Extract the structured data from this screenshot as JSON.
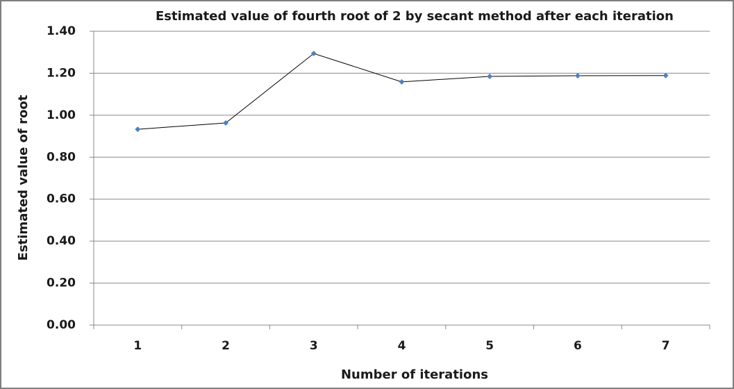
{
  "chart_data": {
    "type": "line",
    "title": "Estimated value of fourth root of 2 by secant method after each iteration",
    "x_label": "Number of iterations",
    "y_label": "Estimated value of root",
    "categories": [
      "1",
      "2",
      "3",
      "4",
      "5",
      "6",
      "7"
    ],
    "values": [
      0.933,
      0.963,
      1.294,
      1.159,
      1.185,
      1.188,
      1.189
    ],
    "color": "#4f81bd",
    "line_color": "#000000",
    "ylim": [
      0,
      1.4
    ],
    "yticks": [
      {
        "value": 0,
        "label": "0.00"
      },
      {
        "value": 0.2,
        "label": "0.20"
      },
      {
        "value": 0.4,
        "label": "0.40"
      },
      {
        "value": 0.6,
        "label": "0.60"
      },
      {
        "value": 0.8,
        "label": "0.80"
      },
      {
        "value": 1,
        "label": "1.00"
      },
      {
        "value": 1.2,
        "label": "1.20"
      },
      {
        "value": 1.4,
        "label": "1.40"
      }
    ],
    "grid": true
  }
}
